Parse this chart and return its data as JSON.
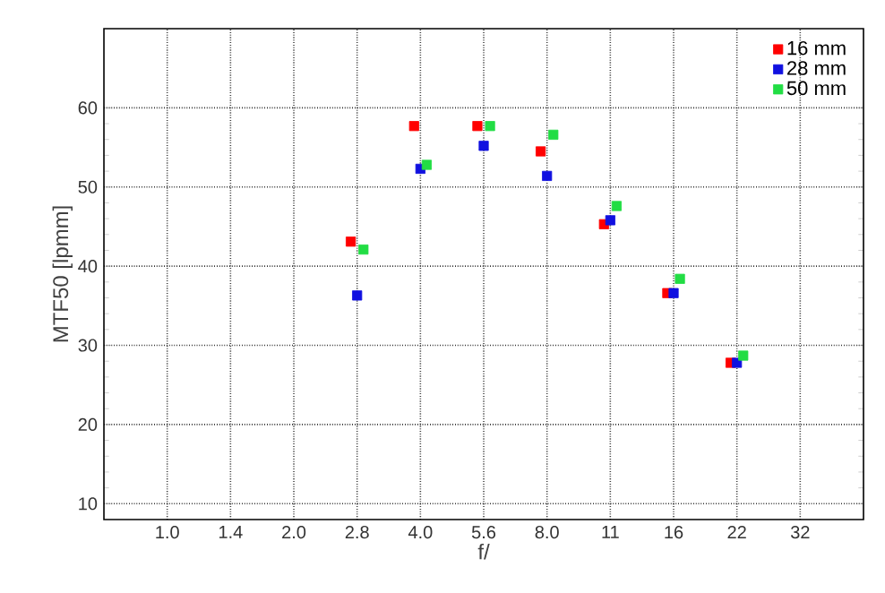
{
  "chart_data": {
    "type": "scatter",
    "xlabel": "f/",
    "ylabel": "MTF50 [lpmm]",
    "categories": [
      "1.0",
      "1.4",
      "2.0",
      "2.8",
      "4.0",
      "5.6",
      "8.0",
      "11",
      "16",
      "22",
      "32"
    ],
    "series": [
      {
        "name": "16 mm",
        "color": "#ff0000",
        "x": [
          "2.8",
          "4.0",
          "5.6",
          "8.0",
          "11",
          "16",
          "22"
        ],
        "values": [
          43.1,
          57.7,
          57.7,
          54.5,
          45.3,
          36.6,
          27.8
        ]
      },
      {
        "name": "28 mm",
        "color": "#1010e0",
        "x": [
          "2.8",
          "4.0",
          "5.6",
          "8.0",
          "11",
          "16",
          "22"
        ],
        "values": [
          36.3,
          52.3,
          55.2,
          51.4,
          45.8,
          36.6,
          27.8
        ]
      },
      {
        "name": "50 mm",
        "color": "#22dd44",
        "x": [
          "2.8",
          "4.0",
          "5.6",
          "8.0",
          "11",
          "16",
          "22"
        ],
        "values": [
          42.1,
          52.8,
          57.7,
          56.6,
          47.6,
          38.4,
          28.7
        ]
      }
    ],
    "ylim": [
      8,
      70
    ],
    "yticks": [
      10,
      20,
      30,
      40,
      50,
      60
    ],
    "grid": true,
    "legend": "top right",
    "marker": "square"
  }
}
